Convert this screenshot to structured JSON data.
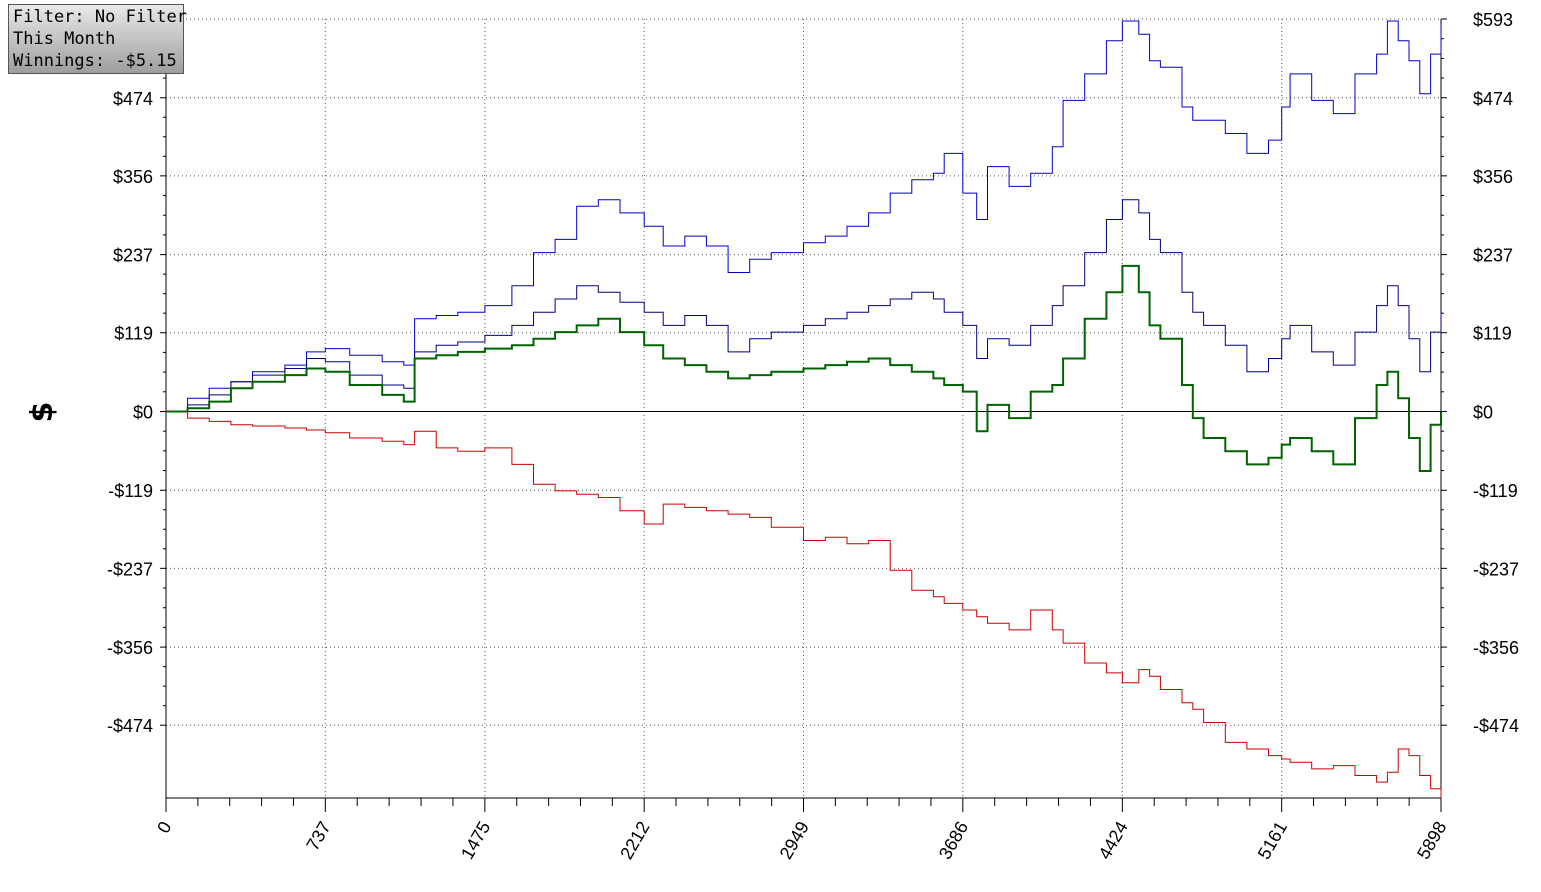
{
  "info_box": {
    "filter": "Filter: No Filter",
    "period": "This Month",
    "winnings": "Winnings: -$5.15"
  },
  "chart_data": {
    "type": "line",
    "title": "",
    "xlabel": "",
    "ylabel": "$",
    "xlim": [
      0,
      5898
    ],
    "ylim": [
      -584,
      593
    ],
    "x_ticks": [
      0,
      737,
      1475,
      2212,
      2949,
      3686,
      4424,
      5161,
      5898
    ],
    "y_ticks": [
      {
        "value": 593,
        "label": "$593"
      },
      {
        "value": 474,
        "label": "$474"
      },
      {
        "value": 356,
        "label": "$356"
      },
      {
        "value": 237,
        "label": "$237"
      },
      {
        "value": 119,
        "label": "$119"
      },
      {
        "value": 0,
        "label": "$0"
      },
      {
        "value": -119,
        "label": "-$119"
      },
      {
        "value": -237,
        "label": "-$237"
      },
      {
        "value": -356,
        "label": "-$356"
      },
      {
        "value": -474,
        "label": "-$474"
      }
    ],
    "grid": true,
    "series": [
      {
        "color": "#0000cc",
        "x": [
          0,
          100,
          200,
          300,
          400,
          550,
          650,
          737,
          850,
          1000,
          1100,
          1150,
          1250,
          1350,
          1475,
          1600,
          1700,
          1800,
          1900,
          2000,
          2100,
          2212,
          2300,
          2400,
          2500,
          2600,
          2700,
          2800,
          2949,
          3050,
          3150,
          3250,
          3350,
          3450,
          3550,
          3600,
          3686,
          3750,
          3800,
          3900,
          4000,
          4100,
          4150,
          4250,
          4350,
          4424,
          4500,
          4550,
          4600,
          4700,
          4750,
          4800,
          4900,
          5000,
          5100,
          5161,
          5200,
          5300,
          5400,
          5500,
          5600,
          5650,
          5700,
          5750,
          5800,
          5850,
          5898
        ],
        "values": [
          0,
          20,
          35,
          45,
          60,
          70,
          90,
          95,
          85,
          75,
          70,
          140,
          145,
          150,
          160,
          190,
          240,
          260,
          310,
          320,
          300,
          280,
          250,
          265,
          250,
          210,
          230,
          240,
          255,
          265,
          280,
          300,
          330,
          350,
          360,
          390,
          330,
          290,
          370,
          340,
          360,
          400,
          470,
          510,
          560,
          590,
          570,
          530,
          520,
          460,
          440,
          440,
          420,
          390,
          410,
          460,
          510,
          470,
          450,
          510,
          540,
          590,
          560,
          530,
          480,
          540,
          585
        ]
      },
      {
        "color": "#000080",
        "x": [
          0,
          100,
          200,
          300,
          400,
          550,
          650,
          737,
          850,
          1000,
          1100,
          1150,
          1250,
          1350,
          1475,
          1600,
          1700,
          1800,
          1900,
          2000,
          2100,
          2212,
          2300,
          2400,
          2500,
          2600,
          2700,
          2800,
          2949,
          3050,
          3150,
          3250,
          3350,
          3450,
          3550,
          3600,
          3686,
          3750,
          3800,
          3900,
          4000,
          4100,
          4150,
          4250,
          4350,
          4424,
          4500,
          4550,
          4600,
          4700,
          4750,
          4800,
          4900,
          5000,
          5100,
          5161,
          5200,
          5300,
          5400,
          5500,
          5600,
          5650,
          5700,
          5750,
          5800,
          5850,
          5898
        ],
        "values": [
          0,
          10,
          25,
          45,
          55,
          65,
          80,
          75,
          55,
          40,
          35,
          90,
          100,
          105,
          115,
          130,
          150,
          170,
          190,
          180,
          165,
          150,
          130,
          145,
          130,
          90,
          110,
          120,
          130,
          140,
          150,
          160,
          170,
          180,
          170,
          150,
          130,
          80,
          110,
          100,
          130,
          160,
          190,
          240,
          290,
          320,
          300,
          260,
          240,
          180,
          150,
          130,
          100,
          60,
          80,
          110,
          130,
          90,
          70,
          120,
          160,
          190,
          160,
          110,
          60,
          120,
          150
        ]
      },
      {
        "color": "#006400",
        "x": [
          0,
          100,
          200,
          300,
          400,
          550,
          650,
          737,
          850,
          1000,
          1100,
          1150,
          1250,
          1350,
          1475,
          1600,
          1700,
          1800,
          1900,
          2000,
          2100,
          2212,
          2300,
          2400,
          2500,
          2600,
          2700,
          2800,
          2949,
          3050,
          3150,
          3250,
          3350,
          3450,
          3550,
          3600,
          3686,
          3750,
          3800,
          3900,
          4000,
          4100,
          4150,
          4250,
          4350,
          4424,
          4500,
          4550,
          4600,
          4700,
          4750,
          4800,
          4900,
          5000,
          5100,
          5161,
          5200,
          5300,
          5400,
          5500,
          5600,
          5650,
          5700,
          5750,
          5800,
          5850,
          5898
        ],
        "values": [
          0,
          5,
          15,
          35,
          45,
          55,
          65,
          60,
          40,
          25,
          15,
          80,
          85,
          90,
          95,
          100,
          110,
          120,
          130,
          140,
          120,
          100,
          80,
          70,
          60,
          50,
          55,
          60,
          65,
          70,
          75,
          80,
          70,
          60,
          50,
          40,
          30,
          -30,
          10,
          -10,
          30,
          40,
          80,
          140,
          180,
          220,
          180,
          130,
          110,
          40,
          -10,
          -40,
          -60,
          -80,
          -70,
          -50,
          -40,
          -60,
          -80,
          -10,
          40,
          60,
          20,
          -40,
          -90,
          -20,
          0
        ]
      },
      {
        "color": "#cc0000",
        "x": [
          0,
          100,
          200,
          300,
          400,
          550,
          650,
          737,
          850,
          1000,
          1100,
          1150,
          1250,
          1350,
          1475,
          1600,
          1700,
          1800,
          1900,
          2000,
          2100,
          2212,
          2300,
          2400,
          2500,
          2600,
          2700,
          2800,
          2949,
          3050,
          3150,
          3250,
          3350,
          3450,
          3550,
          3600,
          3686,
          3750,
          3800,
          3900,
          4000,
          4100,
          4150,
          4250,
          4350,
          4424,
          4500,
          4550,
          4600,
          4700,
          4750,
          4800,
          4900,
          5000,
          5100,
          5161,
          5200,
          5300,
          5400,
          5500,
          5600,
          5650,
          5700,
          5750,
          5800,
          5850,
          5898
        ],
        "values": [
          0,
          -10,
          -15,
          -20,
          -22,
          -25,
          -28,
          -32,
          -40,
          -45,
          -50,
          -30,
          -55,
          -60,
          -55,
          -80,
          -110,
          -120,
          -125,
          -130,
          -150,
          -170,
          -140,
          -145,
          -150,
          -155,
          -160,
          -175,
          -195,
          -190,
          -200,
          -195,
          -240,
          -270,
          -280,
          -290,
          -300,
          -310,
          -320,
          -330,
          -300,
          -330,
          -350,
          -380,
          -395,
          -410,
          -390,
          -400,
          -420,
          -440,
          -450,
          -470,
          -500,
          -510,
          -520,
          -525,
          -530,
          -540,
          -535,
          -550,
          -560,
          -545,
          -510,
          -520,
          -550,
          -570,
          -584
        ]
      }
    ]
  }
}
